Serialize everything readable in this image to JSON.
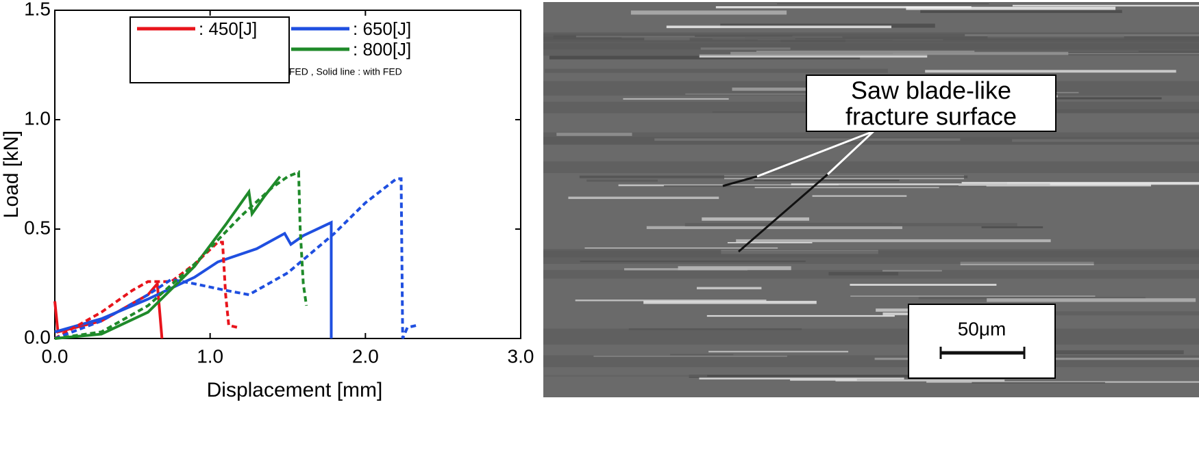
{
  "chart_data": {
    "type": "line",
    "ylabel": "Load [kN]",
    "xlabel": "Displacement [mm]",
    "xlim": [
      0,
      3
    ],
    "ylim": [
      0,
      1.5
    ],
    "xticks": [
      {
        "value": 0,
        "label": "0.0"
      },
      {
        "value": 1,
        "label": "1.0"
      },
      {
        "value": 2,
        "label": "2.0"
      },
      {
        "value": 3,
        "label": "3.0"
      }
    ],
    "yticks": [
      {
        "value": 0,
        "label": "0.0"
      },
      {
        "value": 0.5,
        "label": "0.5"
      },
      {
        "value": 1,
        "label": "1.0"
      },
      {
        "value": 1.5,
        "label": "1.5"
      }
    ],
    "legend_note": "Dotted line : without FED , Solid line : with FED",
    "series": [
      {
        "name": ": 450[J]",
        "color": "#e8141c",
        "style": "solid",
        "x": [
          0,
          0.02,
          0.3,
          0.6,
          0.66,
          0.69
        ],
        "values": [
          0.17,
          0.03,
          0.08,
          0.2,
          0.25,
          0
        ]
      },
      {
        "name": ": 650[J]",
        "color": "#1f4fe0",
        "style": "solid",
        "x": [
          0,
          0.3,
          0.6,
          0.9,
          1.05,
          1.3,
          1.48,
          1.52,
          1.6,
          1.75,
          1.78,
          1.78
        ],
        "values": [
          0.03,
          0.09,
          0.18,
          0.28,
          0.35,
          0.41,
          0.48,
          0.43,
          0.47,
          0.52,
          0.53,
          0
        ]
      },
      {
        "name": ": 800[J]",
        "color": "#1f8a2a",
        "style": "solid",
        "x": [
          0,
          0.3,
          0.6,
          0.9,
          1.1,
          1.22,
          1.25,
          1.27,
          1.35,
          1.45
        ],
        "values": [
          0,
          0.02,
          0.12,
          0.33,
          0.52,
          0.64,
          0.67,
          0.57,
          0.65,
          0.74
        ]
      },
      {
        "name": ": 450[J]",
        "color": "#e8141c",
        "style": "dotted",
        "x": [
          0,
          0.3,
          0.5,
          0.6,
          0.75,
          0.9,
          1.05,
          1.08,
          1.1,
          1.12,
          1.18
        ],
        "values": [
          0,
          0.12,
          0.22,
          0.26,
          0.26,
          0.34,
          0.44,
          0.44,
          0.2,
          0.06,
          0.05
        ]
      },
      {
        "name": ": 650[J]",
        "color": "#1f4fe0",
        "style": "dotted",
        "x": [
          0,
          0.3,
          0.6,
          0.75,
          0.9,
          1.1,
          1.25,
          1.5,
          1.8,
          2.0,
          2.2,
          2.23,
          2.24,
          2.27,
          2.33
        ],
        "values": [
          0,
          0.08,
          0.2,
          0.27,
          0.25,
          0.22,
          0.2,
          0.3,
          0.48,
          0.62,
          0.73,
          0.73,
          0,
          0.05,
          0.06
        ]
      },
      {
        "name": ": 800[J]",
        "color": "#1f8a2a",
        "style": "dotted",
        "x": [
          0,
          0.3,
          0.6,
          0.9,
          1.2,
          1.4,
          1.5,
          1.57,
          1.58,
          1.6,
          1.62
        ],
        "values": [
          0,
          0.03,
          0.15,
          0.34,
          0.56,
          0.69,
          0.74,
          0.76,
          0.5,
          0.25,
          0.15
        ]
      }
    ]
  },
  "image": {
    "annotation": [
      "Saw blade-like",
      "fracture surface"
    ],
    "scale_bar": "50μm"
  }
}
